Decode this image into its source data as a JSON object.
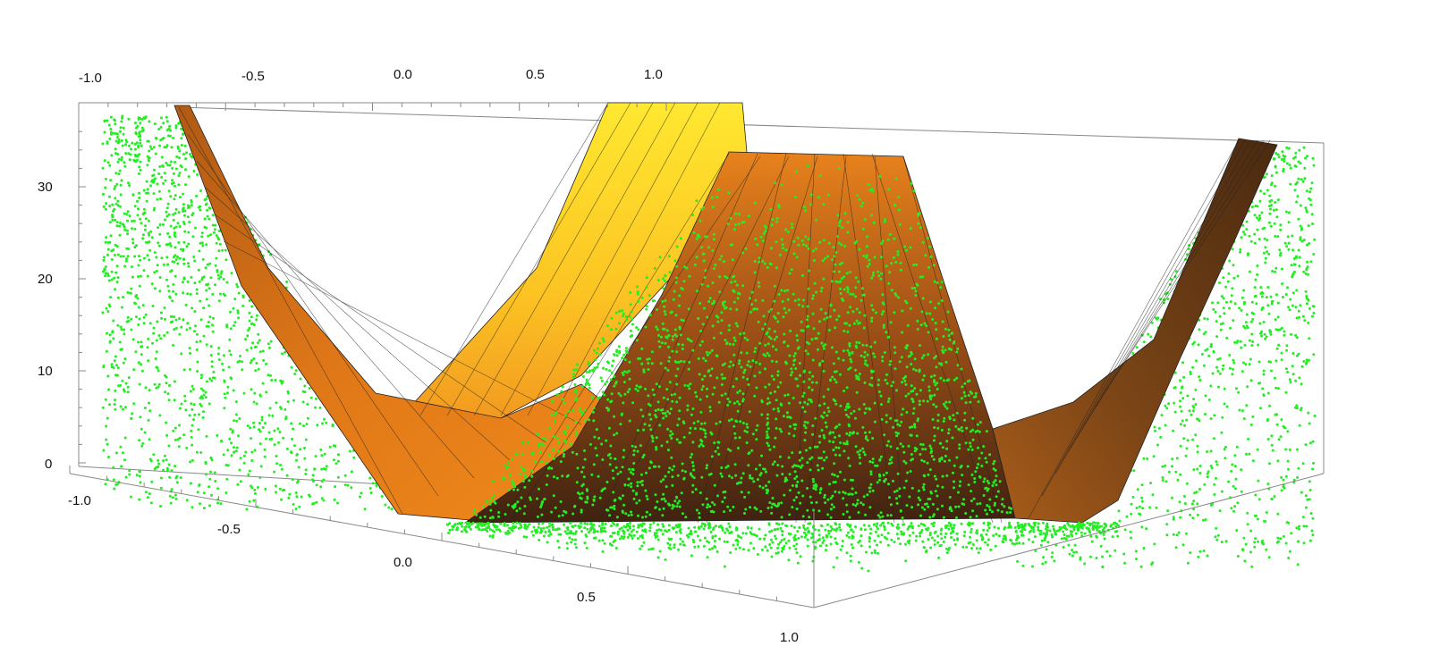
{
  "chart_data": {
    "type": "surface3d",
    "title": "",
    "x_ticks": [
      "-1.0",
      "-0.5",
      "0.0",
      "0.5",
      "1.0"
    ],
    "y_ticks": [
      "-1.0",
      "-0.5",
      "0.0",
      "0.5",
      "1.0"
    ],
    "z_ticks": [
      "0",
      "10",
      "20",
      "30"
    ],
    "x_range": [
      -1.0,
      1.0
    ],
    "y_range": [
      -1.0,
      1.0
    ],
    "z_range": [
      0,
      38
    ],
    "series": [
      {
        "kind": "surface",
        "color_top": "#ffe830",
        "color_mid": "#f08a1a",
        "color_dark": "#4a2a10",
        "mesh": true
      },
      {
        "kind": "scatter_points",
        "color": "#22ee22"
      }
    ],
    "box": true
  }
}
